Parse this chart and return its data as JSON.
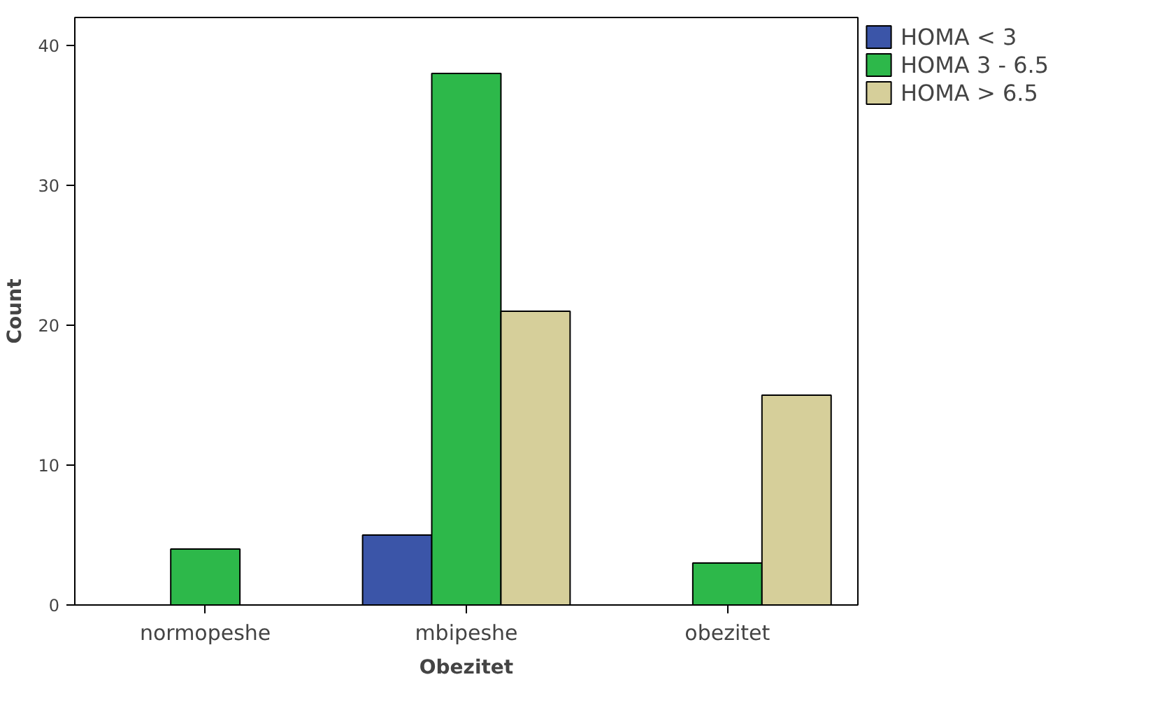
{
  "chart_data": {
    "type": "bar",
    "xlabel": "Obezitet",
    "ylabel": "Count",
    "categories": [
      "normopeshe",
      "mbipeshe",
      "obezitet"
    ],
    "series": [
      {
        "name": "HOMA < 3",
        "color": "#3b55a8",
        "values": [
          null,
          5,
          null
        ]
      },
      {
        "name": "HOMA 3 - 6.5",
        "color": "#2db84a",
        "values": [
          4,
          38,
          3
        ]
      },
      {
        "name": "HOMA > 6.5",
        "color": "#d6cf9a",
        "values": [
          null,
          21,
          15
        ]
      }
    ],
    "ylim": [
      0,
      42
    ],
    "yticks": [
      0,
      10,
      20,
      30,
      40
    ],
    "grid": false,
    "legend": "top right"
  }
}
